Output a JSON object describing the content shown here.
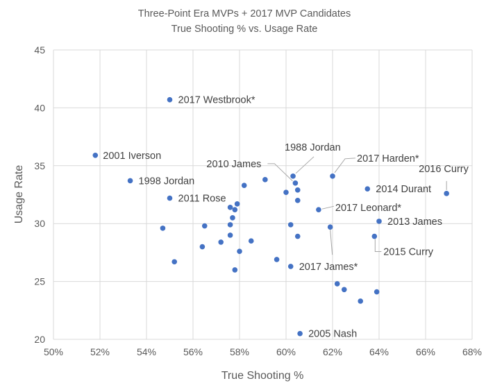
{
  "chart_data": {
    "type": "scatter",
    "title": "Three-Point Era MVPs + 2017 MVP Candidates",
    "subtitle": "True Shooting % vs. Usage Rate",
    "xlabel": "True Shooting %",
    "ylabel": "Usage Rate",
    "xlim": [
      50,
      68
    ],
    "ylim": [
      20,
      45
    ],
    "x_ticks": [
      "50%",
      "52%",
      "54%",
      "56%",
      "58%",
      "60%",
      "62%",
      "64%",
      "66%",
      "68%"
    ],
    "y_ticks": [
      "20",
      "25",
      "30",
      "35",
      "40",
      "45"
    ],
    "grid": true,
    "legend": "none",
    "color": "#4472c4",
    "points": [
      {
        "x": 55.0,
        "y": 40.7,
        "label": "2017 Westbrook*"
      },
      {
        "x": 51.8,
        "y": 35.9,
        "label": "2001 Iverson"
      },
      {
        "x": 53.3,
        "y": 33.7,
        "label": "1998 Jordan"
      },
      {
        "x": 55.0,
        "y": 32.2,
        "label": "2011 Rose"
      },
      {
        "x": 54.7,
        "y": 29.6
      },
      {
        "x": 55.2,
        "y": 26.7
      },
      {
        "x": 56.5,
        "y": 29.8
      },
      {
        "x": 56.4,
        "y": 28.0
      },
      {
        "x": 57.2,
        "y": 28.4
      },
      {
        "x": 57.6,
        "y": 31.4
      },
      {
        "x": 57.8,
        "y": 31.2
      },
      {
        "x": 57.9,
        "y": 31.7
      },
      {
        "x": 57.7,
        "y": 30.5
      },
      {
        "x": 57.6,
        "y": 29.9
      },
      {
        "x": 57.6,
        "y": 29.0
      },
      {
        "x": 58.0,
        "y": 27.6
      },
      {
        "x": 57.8,
        "y": 26.0
      },
      {
        "x": 58.2,
        "y": 33.3
      },
      {
        "x": 58.5,
        "y": 28.5
      },
      {
        "x": 59.1,
        "y": 33.8
      },
      {
        "x": 59.6,
        "y": 26.9
      },
      {
        "x": 60.0,
        "y": 32.7
      },
      {
        "x": 60.2,
        "y": 29.9
      },
      {
        "x": 60.2,
        "y": 26.3,
        "label": "2017 James*"
      },
      {
        "x": 60.3,
        "y": 34.1,
        "label": "1988 Jordan"
      },
      {
        "x": 60.4,
        "y": 33.5,
        "label": "2010 James"
      },
      {
        "x": 60.5,
        "y": 32.9
      },
      {
        "x": 60.5,
        "y": 32.0
      },
      {
        "x": 60.5,
        "y": 28.9
      },
      {
        "x": 60.6,
        "y": 20.5,
        "label": "2005 Nash"
      },
      {
        "x": 61.4,
        "y": 31.2,
        "label": "2017 Leonard*"
      },
      {
        "x": 61.9,
        "y": 29.7
      },
      {
        "x": 62.0,
        "y": 34.1,
        "label": "2017 Harden*"
      },
      {
        "x": 62.2,
        "y": 24.8
      },
      {
        "x": 62.5,
        "y": 24.3
      },
      {
        "x": 63.2,
        "y": 23.3
      },
      {
        "x": 63.5,
        "y": 33.0,
        "label": "2014 Durant"
      },
      {
        "x": 64.0,
        "y": 30.2,
        "label": "2013 James"
      },
      {
        "x": 63.8,
        "y": 28.9,
        "label": "2015 Curry"
      },
      {
        "x": 63.9,
        "y": 24.1
      },
      {
        "x": 66.9,
        "y": 32.6,
        "label": "2016 Curry"
      }
    ]
  }
}
